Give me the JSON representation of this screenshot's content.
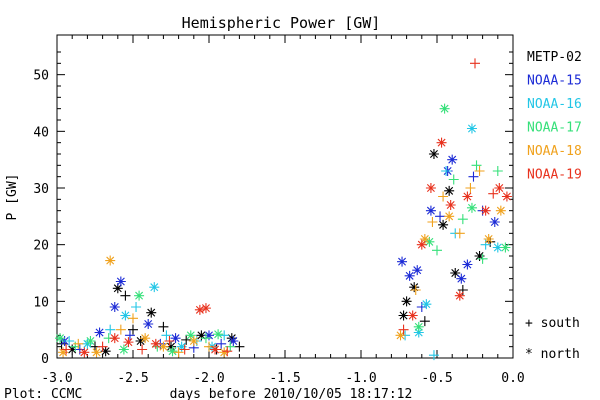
{
  "footer": {
    "credit": "Plot: CCMC"
  },
  "chart_data": {
    "type": "scatter",
    "title": "Hemispheric Power [GW]",
    "xlabel": "days before 2010/10/05 18:17:12",
    "ylabel": "P [GW]",
    "xlim": [
      -3.0,
      0.0
    ],
    "ylim": [
      0,
      57
    ],
    "x_ticks": [
      -3.0,
      -2.5,
      -2.0,
      -1.5,
      -1.0,
      -0.5,
      0.0
    ],
    "x_tick_labels": [
      "-3.0",
      "-2.5",
      "-2.0",
      "-1.5",
      "-1.0",
      "-0.5",
      "0.0"
    ],
    "y_ticks": [
      0,
      10,
      20,
      30,
      40,
      50
    ],
    "y_tick_labels": [
      "0",
      "10",
      "20",
      "30",
      "40",
      "50"
    ],
    "grid": false,
    "legend_position": "right",
    "marker_legend": [
      {
        "symbol": "+",
        "label": "south"
      },
      {
        "symbol": "*",
        "label": "north"
      }
    ],
    "series": [
      {
        "name": "METP-02",
        "color": "#000000",
        "points": [
          [
            -2.97,
            2.5,
            "+"
          ],
          [
            -2.9,
            1.5,
            "*"
          ],
          [
            -2.75,
            2.0,
            "+"
          ],
          [
            -2.68,
            1.2,
            "*"
          ],
          [
            -2.6,
            12.3,
            "*"
          ],
          [
            -2.55,
            11.0,
            "+"
          ],
          [
            -2.5,
            5.0,
            "+"
          ],
          [
            -2.45,
            3.0,
            "*"
          ],
          [
            -2.38,
            8.0,
            "*"
          ],
          [
            -2.3,
            5.5,
            "+"
          ],
          [
            -2.25,
            2.0,
            "*"
          ],
          [
            -2.15,
            3.2,
            "+"
          ],
          [
            -2.05,
            4.0,
            "*"
          ],
          [
            -1.95,
            1.5,
            "+"
          ],
          [
            -1.85,
            3.5,
            "*"
          ],
          [
            -1.8,
            2.0,
            "+"
          ],
          [
            -0.72,
            7.5,
            "*"
          ],
          [
            -0.7,
            10.0,
            "*"
          ],
          [
            -0.65,
            12.5,
            "*"
          ],
          [
            -0.58,
            6.5,
            "+"
          ],
          [
            -0.52,
            36.0,
            "*"
          ],
          [
            -0.46,
            23.5,
            "*"
          ],
          [
            -0.42,
            29.5,
            "*"
          ],
          [
            -0.38,
            15.0,
            "*"
          ],
          [
            -0.33,
            12.0,
            "+"
          ],
          [
            -0.22,
            18.0,
            "*"
          ],
          [
            -0.15,
            20.5,
            "+"
          ]
        ]
      },
      {
        "name": "NOAA-15",
        "color": "#1c2bd6",
        "points": [
          [
            -2.95,
            3.0,
            "*"
          ],
          [
            -2.85,
            1.5,
            "+"
          ],
          [
            -2.72,
            4.5,
            "*"
          ],
          [
            -2.62,
            9.0,
            "*"
          ],
          [
            -2.58,
            13.5,
            "*"
          ],
          [
            -2.52,
            4.0,
            "+"
          ],
          [
            -2.4,
            6.0,
            "*"
          ],
          [
            -2.32,
            2.5,
            "+"
          ],
          [
            -2.22,
            3.5,
            "*"
          ],
          [
            -2.1,
            1.8,
            "+"
          ],
          [
            -2.0,
            4.0,
            "*"
          ],
          [
            -1.92,
            2.5,
            "+"
          ],
          [
            -1.84,
            3.0,
            "*"
          ],
          [
            -0.73,
            17.0,
            "*"
          ],
          [
            -0.68,
            14.5,
            "*"
          ],
          [
            -0.63,
            15.5,
            "*"
          ],
          [
            -0.6,
            9.0,
            "+"
          ],
          [
            -0.54,
            26.0,
            "*"
          ],
          [
            -0.48,
            25.0,
            "+"
          ],
          [
            -0.43,
            33.0,
            "*"
          ],
          [
            -0.4,
            35.0,
            "*"
          ],
          [
            -0.34,
            14.0,
            "*"
          ],
          [
            -0.3,
            16.5,
            "*"
          ],
          [
            -0.26,
            32.0,
            "+"
          ],
          [
            -0.2,
            26.0,
            "+"
          ],
          [
            -0.12,
            24.0,
            "*"
          ]
        ]
      },
      {
        "name": "NOAA-16",
        "color": "#22c6e6",
        "points": [
          [
            -2.92,
            3.0,
            "+"
          ],
          [
            -2.8,
            2.5,
            "*"
          ],
          [
            -2.65,
            5.0,
            "+"
          ],
          [
            -2.55,
            7.5,
            "*"
          ],
          [
            -2.48,
            9.0,
            "+"
          ],
          [
            -2.36,
            12.5,
            "*"
          ],
          [
            -2.28,
            4.0,
            "+"
          ],
          [
            -2.18,
            2.0,
            "*"
          ],
          [
            -2.08,
            3.0,
            "+"
          ],
          [
            -1.98,
            2.0,
            "*"
          ],
          [
            -1.9,
            4.0,
            "+"
          ],
          [
            -0.71,
            4.0,
            "+"
          ],
          [
            -0.62,
            4.5,
            "*"
          ],
          [
            -0.57,
            9.5,
            "*"
          ],
          [
            -0.52,
            0.5,
            "+"
          ],
          [
            -0.44,
            33.0,
            "+"
          ],
          [
            -0.38,
            22.0,
            "+"
          ],
          [
            -0.27,
            40.5,
            "*"
          ],
          [
            -0.18,
            20.0,
            "+"
          ],
          [
            -0.1,
            19.5,
            "*"
          ]
        ]
      },
      {
        "name": "NOAA-17",
        "color": "#36e07a",
        "points": [
          [
            -2.98,
            3.5,
            "*"
          ],
          [
            -2.88,
            2.0,
            "+"
          ],
          [
            -2.78,
            3.0,
            "*"
          ],
          [
            -2.66,
            3.5,
            "+"
          ],
          [
            -2.56,
            1.5,
            "*"
          ],
          [
            -2.46,
            11.0,
            "*"
          ],
          [
            -2.34,
            2.0,
            "+"
          ],
          [
            -2.24,
            1.2,
            "*"
          ],
          [
            -2.12,
            4.0,
            "*"
          ],
          [
            -2.02,
            3.5,
            "+"
          ],
          [
            -1.94,
            4.2,
            "*"
          ],
          [
            -1.86,
            2.0,
            "+"
          ],
          [
            -0.62,
            5.5,
            "*"
          ],
          [
            -0.55,
            20.5,
            "*"
          ],
          [
            -0.5,
            19.0,
            "+"
          ],
          [
            -0.45,
            44.0,
            "*"
          ],
          [
            -0.39,
            31.5,
            "+"
          ],
          [
            -0.33,
            24.5,
            "+"
          ],
          [
            -0.27,
            26.5,
            "*"
          ],
          [
            -0.24,
            34.0,
            "+"
          ],
          [
            -0.2,
            17.5,
            "+"
          ],
          [
            -0.1,
            33.0,
            "+"
          ],
          [
            -0.05,
            19.5,
            "*"
          ]
        ]
      },
      {
        "name": "NOAA-18",
        "color": "#f0a21e",
        "points": [
          [
            -2.96,
            1.0,
            "*"
          ],
          [
            -2.86,
            2.5,
            "+"
          ],
          [
            -2.74,
            1.0,
            "*"
          ],
          [
            -2.65,
            17.2,
            "*"
          ],
          [
            -2.58,
            5.0,
            "+"
          ],
          [
            -2.5,
            7.0,
            "+"
          ],
          [
            -2.42,
            3.5,
            "*"
          ],
          [
            -2.3,
            2.0,
            "*"
          ],
          [
            -2.2,
            1.0,
            "+"
          ],
          [
            -2.1,
            3.0,
            "*"
          ],
          [
            -2.0,
            2.0,
            "+"
          ],
          [
            -1.9,
            1.0,
            "*"
          ],
          [
            -0.74,
            4.0,
            "*"
          ],
          [
            -0.64,
            12.0,
            "+"
          ],
          [
            -0.58,
            21.0,
            "*"
          ],
          [
            -0.53,
            24.0,
            "+"
          ],
          [
            -0.46,
            28.5,
            "+"
          ],
          [
            -0.42,
            25.0,
            "*"
          ],
          [
            -0.35,
            22.0,
            "+"
          ],
          [
            -0.28,
            30.0,
            "+"
          ],
          [
            -0.22,
            33.0,
            "+"
          ],
          [
            -0.16,
            21.0,
            "*"
          ],
          [
            -0.08,
            26.0,
            "*"
          ]
        ]
      },
      {
        "name": "NOAA-19",
        "color": "#e8321e",
        "points": [
          [
            -2.94,
            1.5,
            "+"
          ],
          [
            -2.82,
            1.0,
            "*"
          ],
          [
            -2.7,
            2.0,
            "+"
          ],
          [
            -2.62,
            3.5,
            "*"
          ],
          [
            -2.53,
            2.8,
            "*"
          ],
          [
            -2.44,
            1.5,
            "+"
          ],
          [
            -2.35,
            2.5,
            "*"
          ],
          [
            -2.26,
            3.0,
            "+"
          ],
          [
            -2.16,
            1.5,
            "+"
          ],
          [
            -2.06,
            8.5,
            "*"
          ],
          [
            -2.02,
            8.8,
            "*"
          ],
          [
            -1.96,
            1.5,
            "*"
          ],
          [
            -1.88,
            1.2,
            "+"
          ],
          [
            -0.72,
            5.0,
            "+"
          ],
          [
            -0.66,
            7.5,
            "*"
          ],
          [
            -0.6,
            20.0,
            "*"
          ],
          [
            -0.54,
            30.0,
            "*"
          ],
          [
            -0.47,
            38.0,
            "*"
          ],
          [
            -0.41,
            27.0,
            "*"
          ],
          [
            -0.35,
            11.0,
            "*"
          ],
          [
            -0.3,
            28.5,
            "*"
          ],
          [
            -0.25,
            52.0,
            "+"
          ],
          [
            -0.18,
            26.0,
            "*"
          ],
          [
            -0.13,
            29.0,
            "+"
          ],
          [
            -0.09,
            30.0,
            "*"
          ],
          [
            -0.04,
            28.5,
            "*"
          ]
        ]
      }
    ]
  }
}
